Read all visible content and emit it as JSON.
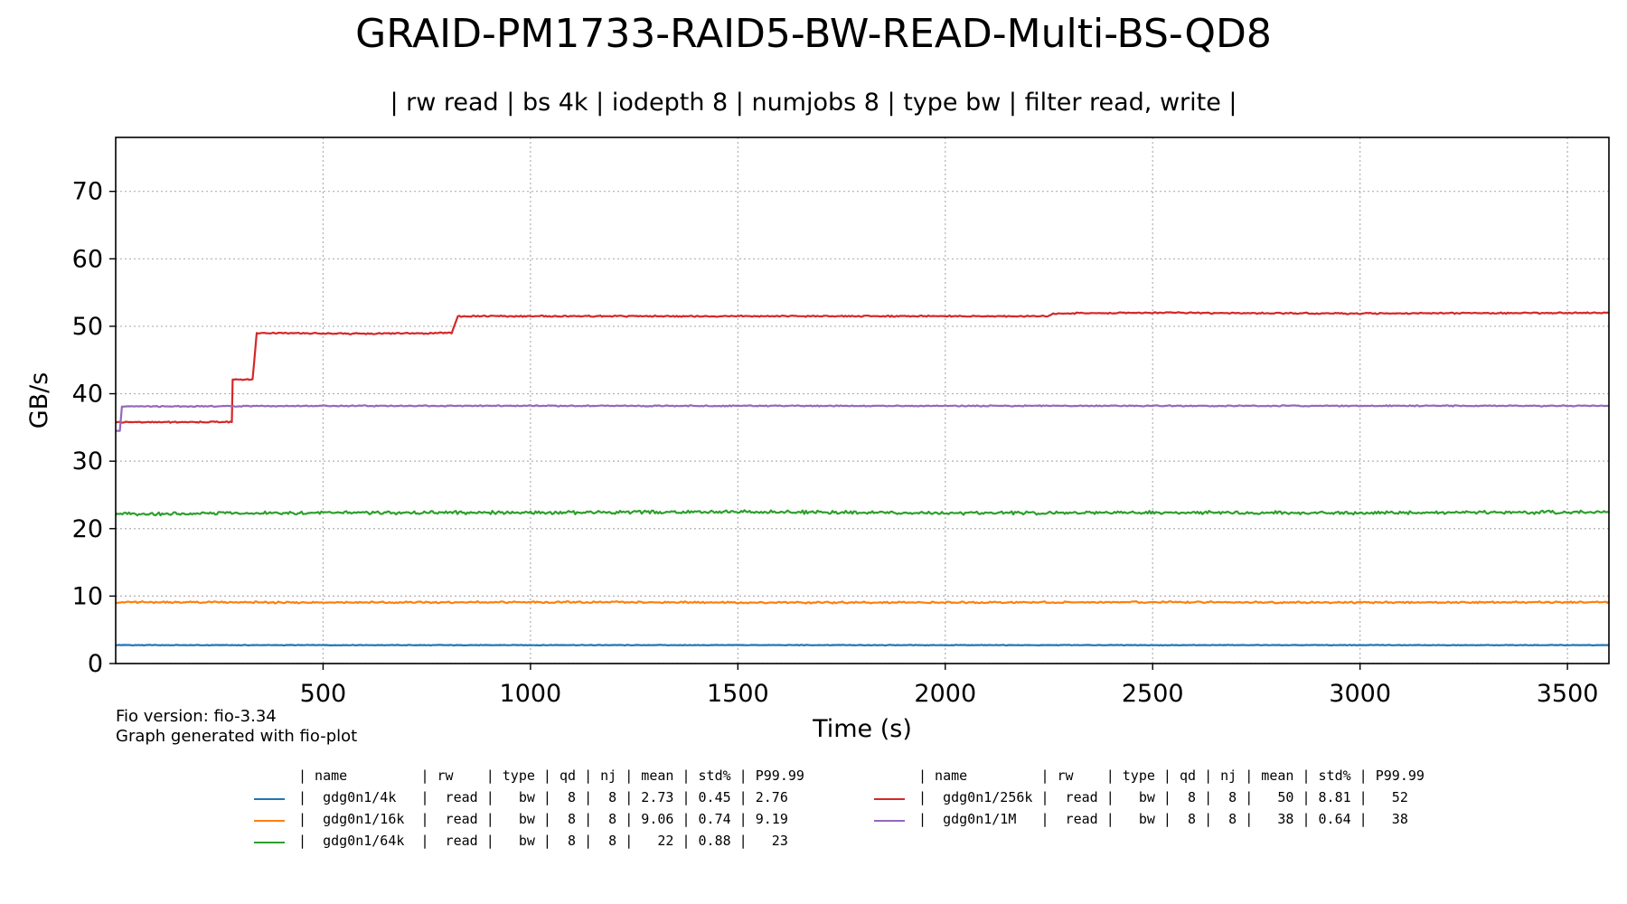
{
  "title": "GRAID-PM1733-RAID5-BW-READ-Multi-BS-QD8",
  "subtitle": "| rw read | bs 4k | iodepth 8 | numjobs 8 | type bw | filter read, write |",
  "footer": {
    "fio_version": "Fio version: fio-3.34",
    "generated_by": "Graph generated with fio-plot"
  },
  "legend": {
    "header": "| name         | rw    | type | qd | nj | mean | std% | P99.99",
    "rows": [
      {
        "color": "#1f77b4",
        "text": "|  gdg0n1/4k   |  read |   bw |  8 |  8 | 2.73 | 0.45 | 2.76"
      },
      {
        "color": "#ff7f0e",
        "text": "|  gdg0n1/16k  |  read |   bw |  8 |  8 | 9.06 | 0.74 | 9.19"
      },
      {
        "color": "#2ca02c",
        "text": "|  gdg0n1/64k  |  read |   bw |  8 |  8 |   22 | 0.88 |   23"
      },
      {
        "color": "#d62728",
        "text": "|  gdg0n1/256k |  read |   bw |  8 |  8 |   50 | 8.81 |   52"
      },
      {
        "color": "#9467bd",
        "text": "|  gdg0n1/1M   |  read |   bw |  8 |  8 |   38 | 0.64 |   38"
      }
    ]
  },
  "chart_data": {
    "type": "line",
    "xlabel": "Time (s)",
    "ylabel": "GB/s",
    "xlim": [
      0,
      3600
    ],
    "ylim": [
      0,
      78
    ],
    "xticks": [
      500,
      1000,
      1500,
      2000,
      2500,
      3000,
      3500
    ],
    "yticks": [
      0,
      10,
      20,
      30,
      40,
      50,
      60,
      70
    ],
    "grid": true,
    "series": [
      {
        "name": "gdg0n1/4k",
        "color": "#1f77b4",
        "points": [
          [
            0,
            2.73
          ],
          [
            3600,
            2.73
          ]
        ]
      },
      {
        "name": "gdg0n1/16k",
        "color": "#ff7f0e",
        "points": [
          [
            0,
            9.1
          ],
          [
            500,
            9.05
          ],
          [
            1000,
            9.1
          ],
          [
            1500,
            9.05
          ],
          [
            2000,
            9.05
          ],
          [
            2500,
            9.1
          ],
          [
            3000,
            9.05
          ],
          [
            3600,
            9.1
          ]
        ]
      },
      {
        "name": "gdg0n1/64k",
        "color": "#2ca02c",
        "points": [
          [
            0,
            22.2
          ],
          [
            500,
            22.3
          ],
          [
            1000,
            22.4
          ],
          [
            1500,
            22.5
          ],
          [
            2000,
            22.3
          ],
          [
            2500,
            22.4
          ],
          [
            3000,
            22.3
          ],
          [
            3600,
            22.5
          ]
        ]
      },
      {
        "name": "gdg0n1/256k",
        "color": "#d62728",
        "points": [
          [
            0,
            35.8
          ],
          [
            280,
            35.8
          ],
          [
            282,
            42.1
          ],
          [
            330,
            42.1
          ],
          [
            340,
            49.0
          ],
          [
            600,
            48.9
          ],
          [
            810,
            49.0
          ],
          [
            825,
            51.5
          ],
          [
            1500,
            51.5
          ],
          [
            2250,
            51.5
          ],
          [
            2260,
            51.9
          ],
          [
            2500,
            52.0
          ],
          [
            3000,
            51.9
          ],
          [
            3600,
            52.0
          ]
        ]
      },
      {
        "name": "gdg0n1/1M",
        "color": "#9467bd",
        "points": [
          [
            0,
            34.5
          ],
          [
            10,
            34.5
          ],
          [
            15,
            38.1
          ],
          [
            500,
            38.2
          ],
          [
            1000,
            38.2
          ],
          [
            2000,
            38.2
          ],
          [
            3000,
            38.2
          ],
          [
            3600,
            38.2
          ]
        ]
      }
    ]
  }
}
